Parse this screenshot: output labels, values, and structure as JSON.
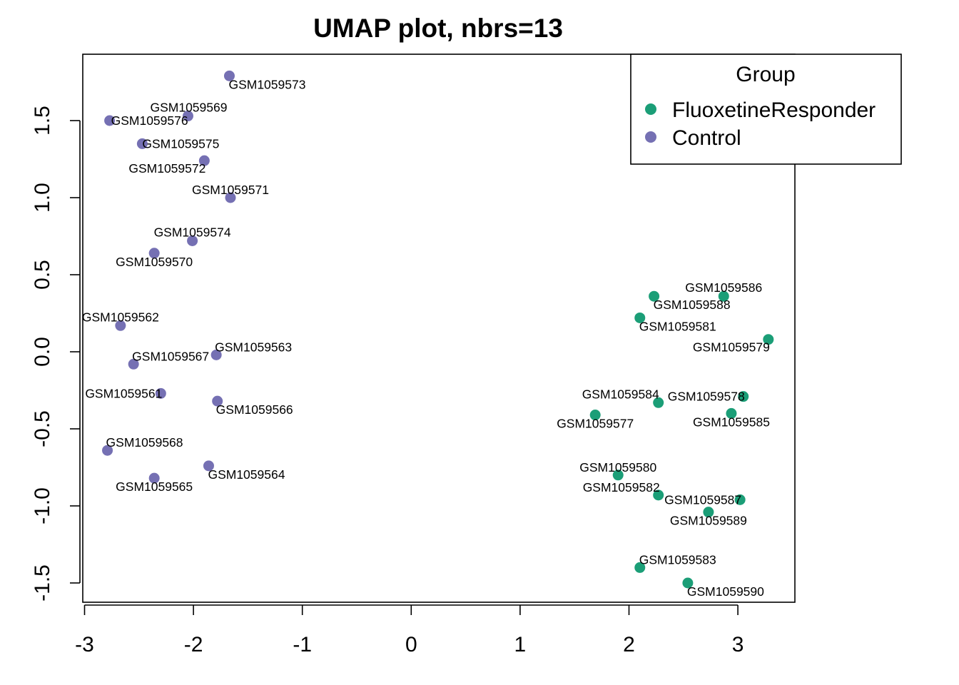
{
  "chart_data": {
    "type": "scatter",
    "title": "UMAP plot, nbrs=13",
    "xlabel": "",
    "ylabel": "",
    "xlim": [
      -3.02,
      3.52
    ],
    "ylim": [
      -1.62,
      1.92
    ],
    "x_ticks": [
      -3,
      -2,
      -1,
      0,
      1,
      2,
      3
    ],
    "x_tick_labels": [
      "-3",
      "-2",
      "-1",
      "0",
      "1",
      "2",
      "3"
    ],
    "y_ticks": [
      -1.5,
      -1.0,
      -0.5,
      0.0,
      0.5,
      1.0,
      1.5
    ],
    "y_tick_labels": [
      "-1.5",
      "-1.0",
      "-0.5",
      "0.0",
      "0.5",
      "1.0",
      "1.5"
    ],
    "grid": false,
    "legend": {
      "title": "Group",
      "position": "top-right",
      "entries": [
        {
          "name": "FluoxetineResponder",
          "color": "#1B9E77"
        },
        {
          "name": "Control",
          "color": "#7570B3"
        }
      ]
    },
    "series": [
      {
        "name": "FluoxetineResponder",
        "color": "#1B9E77",
        "points": [
          {
            "label": "GSM1059577",
            "x": 1.69,
            "y": -0.41
          },
          {
            "label": "GSM1059578",
            "x": 3.05,
            "y": -0.29
          },
          {
            "label": "GSM1059579",
            "x": 3.28,
            "y": 0.08
          },
          {
            "label": "GSM1059580",
            "x": 1.9,
            "y": -0.8
          },
          {
            "label": "GSM1059581",
            "x": 2.1,
            "y": 0.22
          },
          {
            "label": "GSM1059582",
            "x": 2.27,
            "y": -0.93
          },
          {
            "label": "GSM1059583",
            "x": 2.1,
            "y": -1.4
          },
          {
            "label": "GSM1059584",
            "x": 2.27,
            "y": -0.33
          },
          {
            "label": "GSM1059585",
            "x": 2.94,
            "y": -0.4
          },
          {
            "label": "GSM1059586",
            "x": 2.87,
            "y": 0.36
          },
          {
            "label": "GSM1059587",
            "x": 3.02,
            "y": -0.96
          },
          {
            "label": "GSM1059588",
            "x": 2.23,
            "y": 0.36
          },
          {
            "label": "GSM1059589",
            "x": 2.73,
            "y": -1.04
          },
          {
            "label": "GSM1059590",
            "x": 2.54,
            "y": -1.5
          }
        ]
      },
      {
        "name": "Control",
        "color": "#7570B3",
        "points": [
          {
            "label": "GSM1059561",
            "x": -2.3,
            "y": -0.27
          },
          {
            "label": "GSM1059562",
            "x": -2.67,
            "y": 0.17
          },
          {
            "label": "GSM1059563",
            "x": -1.79,
            "y": -0.02
          },
          {
            "label": "GSM1059564",
            "x": -1.86,
            "y": -0.74
          },
          {
            "label": "GSM1059565",
            "x": -2.36,
            "y": -0.82
          },
          {
            "label": "GSM1059566",
            "x": -1.78,
            "y": -0.32
          },
          {
            "label": "GSM1059567",
            "x": -2.55,
            "y": -0.08
          },
          {
            "label": "GSM1059568",
            "x": -2.79,
            "y": -0.64
          },
          {
            "label": "GSM1059569",
            "x": -2.05,
            "y": 1.53
          },
          {
            "label": "GSM1059570",
            "x": -2.36,
            "y": 0.64
          },
          {
            "label": "GSM1059571",
            "x": -1.66,
            "y": 1.0
          },
          {
            "label": "GSM1059572",
            "x": -1.9,
            "y": 1.24
          },
          {
            "label": "GSM1059573",
            "x": -1.67,
            "y": 1.79
          },
          {
            "label": "GSM1059574",
            "x": -2.01,
            "y": 0.72
          },
          {
            "label": "GSM1059575",
            "x": -2.47,
            "y": 1.35
          },
          {
            "label": "GSM1059576",
            "x": -2.77,
            "y": 1.5
          }
        ]
      }
    ]
  }
}
